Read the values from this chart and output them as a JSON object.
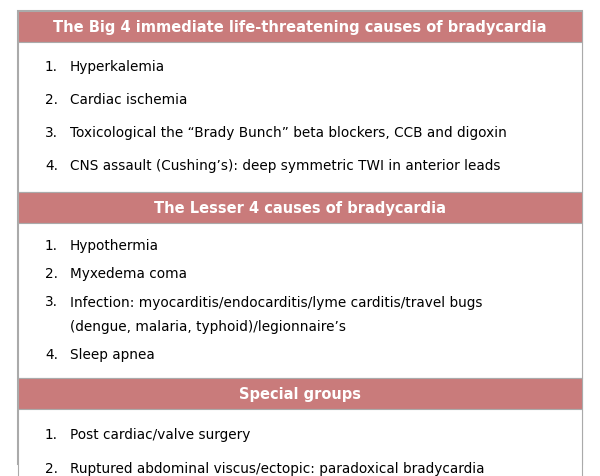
{
  "sections": [
    {
      "header": "The Big 4 immediate life-threatening causes of bradycardia",
      "header_bg": "#c97b7b",
      "header_text_color": "#ffffff",
      "body_bg": "#ffffff",
      "items": [
        "Hyperkalemia",
        "Cardiac ischemia",
        "Toxicological the “Brady Bunch” beta blockers, CCB and digoxin",
        "CNS assault (Cushing’s): deep symmetric TWI in anterior leads"
      ]
    },
    {
      "header": "The Lesser 4 causes of bradycardia",
      "header_bg": "#c97b7b",
      "header_text_color": "#ffffff",
      "body_bg": "#ffffff",
      "items": [
        "Hypothermia",
        "Myxedema coma",
        "Infection: myocarditis/endocarditis/lyme carditis/travel bugs\n(dengue, malaria, typhoid)/legionnaire’s",
        "Sleep apnea"
      ]
    },
    {
      "header": "Special groups",
      "header_bg": "#c97b7b",
      "header_text_color": "#ffffff",
      "body_bg": "#ffffff",
      "items": [
        "Post cardiac/valve surgery",
        "Ruptured abdominal viscus/ectopic: paradoxical bradycardia\nfrom vagal response"
      ]
    }
  ],
  "outer_border_color": "#aaaaaa",
  "background_color": "#ffffff",
  "text_color": "#000000",
  "header_fontsize": 10.5,
  "body_fontsize": 9.8,
  "fig_width": 6.0,
  "fig_height": 4.77,
  "dpi": 100
}
